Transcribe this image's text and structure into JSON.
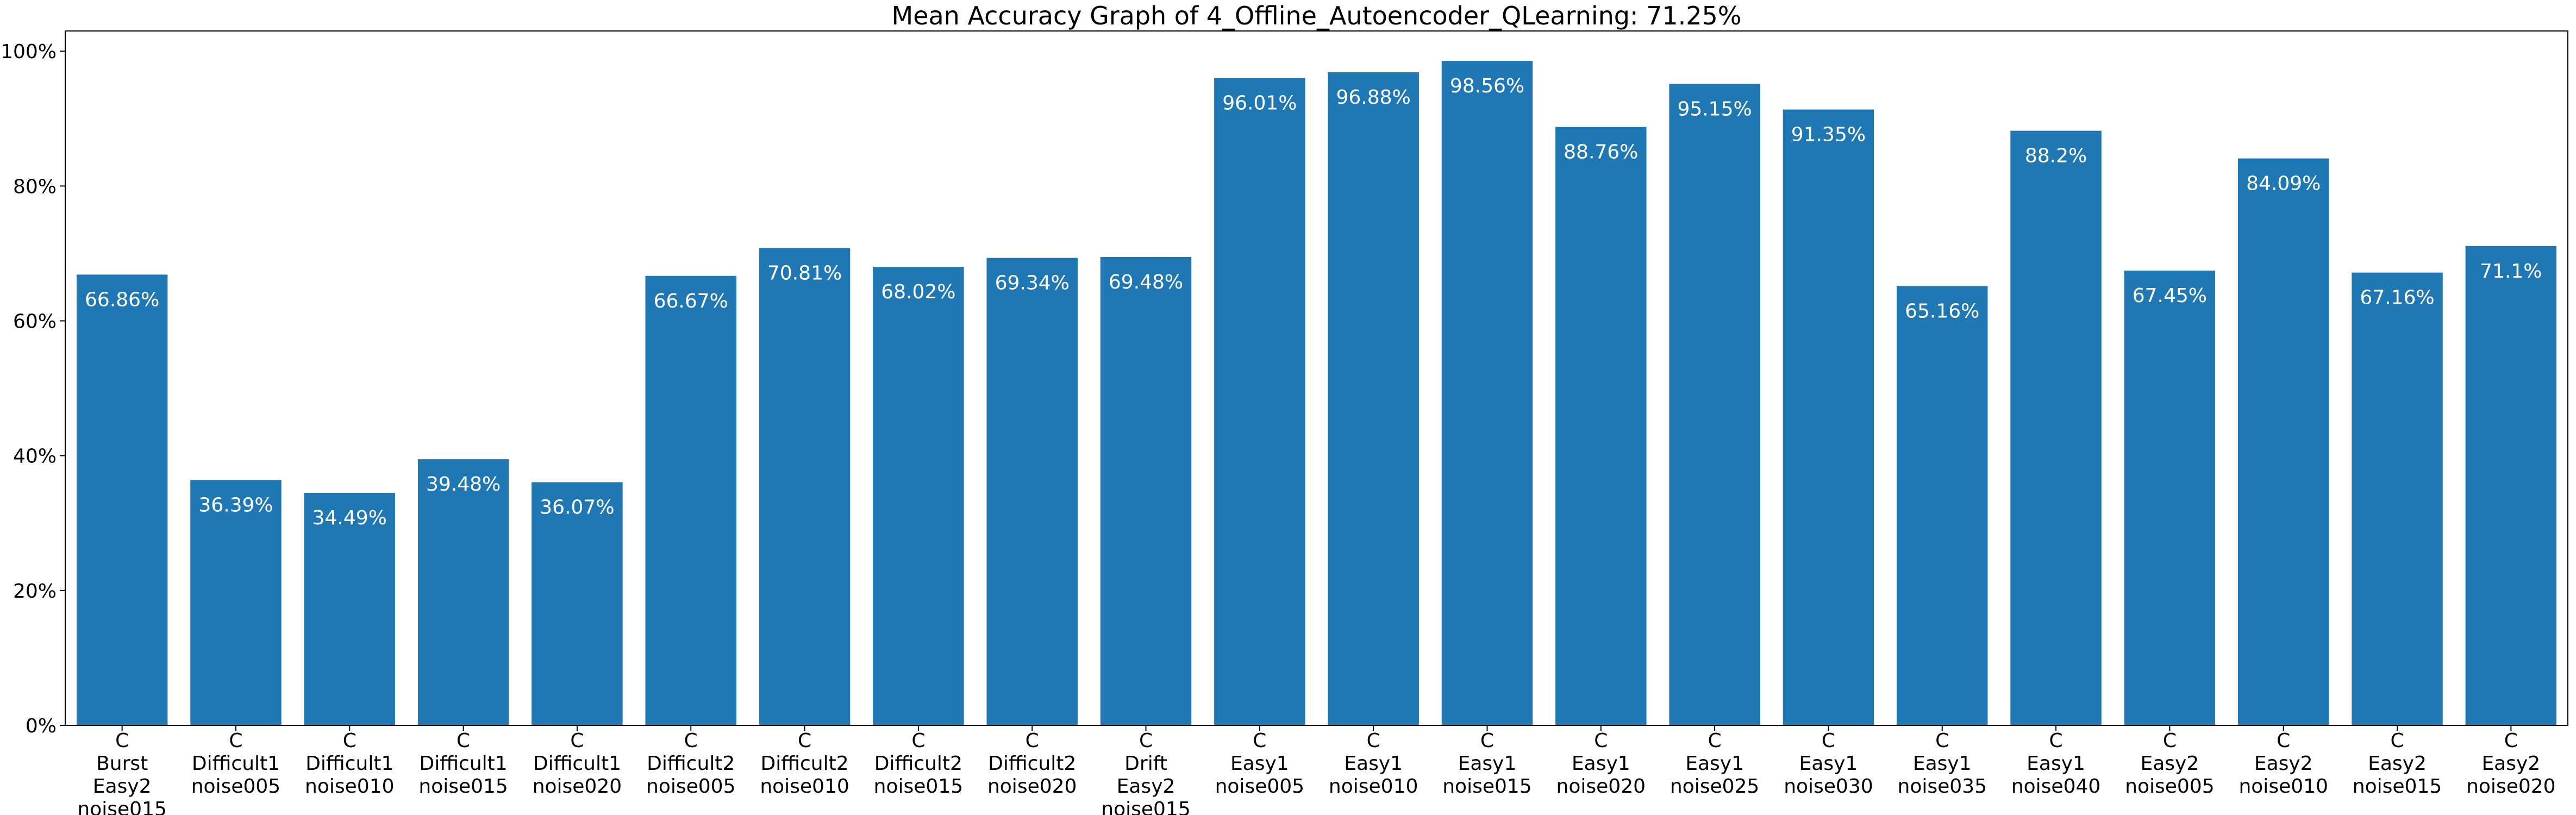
{
  "chart_data": {
    "type": "bar",
    "title": "Mean Accuracy Graph of 4_Offline_Autoencoder_QLearning: 71.25%",
    "xlabel": "",
    "ylabel": "",
    "ylim": [
      0,
      103
    ],
    "y_ticks": [
      0,
      20,
      40,
      60,
      80,
      100
    ],
    "y_tick_labels": [
      "0%",
      "20%",
      "40%",
      "60%",
      "80%",
      "100%"
    ],
    "bar_color": "#1f77b4",
    "grid": false,
    "categories": [
      [
        "C",
        "Burst",
        "Easy2",
        "noise015"
      ],
      [
        "C",
        "Difficult1",
        "noise005"
      ],
      [
        "C",
        "Difficult1",
        "noise010"
      ],
      [
        "C",
        "Difficult1",
        "noise015"
      ],
      [
        "C",
        "Difficult1",
        "noise020"
      ],
      [
        "C",
        "Difficult2",
        "noise005"
      ],
      [
        "C",
        "Difficult2",
        "noise010"
      ],
      [
        "C",
        "Difficult2",
        "noise015"
      ],
      [
        "C",
        "Difficult2",
        "noise020"
      ],
      [
        "C",
        "Drift",
        "Easy2",
        "noise015"
      ],
      [
        "C",
        "Easy1",
        "noise005"
      ],
      [
        "C",
        "Easy1",
        "noise010"
      ],
      [
        "C",
        "Easy1",
        "noise015"
      ],
      [
        "C",
        "Easy1",
        "noise020"
      ],
      [
        "C",
        "Easy1",
        "noise025"
      ],
      [
        "C",
        "Easy1",
        "noise030"
      ],
      [
        "C",
        "Easy1",
        "noise035"
      ],
      [
        "C",
        "Easy1",
        "noise040"
      ],
      [
        "C",
        "Easy2",
        "noise005"
      ],
      [
        "C",
        "Easy2",
        "noise010"
      ],
      [
        "C",
        "Easy2",
        "noise015"
      ],
      [
        "C",
        "Easy2",
        "noise020"
      ]
    ],
    "values": [
      66.86,
      36.39,
      34.49,
      39.48,
      36.07,
      66.67,
      70.81,
      68.02,
      69.34,
      69.48,
      96.01,
      96.88,
      98.56,
      88.76,
      95.15,
      91.35,
      65.16,
      88.2,
      67.45,
      84.09,
      67.16,
      71.1
    ],
    "data_labels": [
      "66.86%",
      "36.39%",
      "34.49%",
      "39.48%",
      "36.07%",
      "66.67%",
      "70.81%",
      "68.02%",
      "69.34%",
      "69.48%",
      "96.01%",
      "96.88%",
      "98.56%",
      "88.76%",
      "95.15%",
      "91.35%",
      "65.16%",
      "88.2%",
      "67.45%",
      "84.09%",
      "67.16%",
      "71.1%"
    ]
  }
}
